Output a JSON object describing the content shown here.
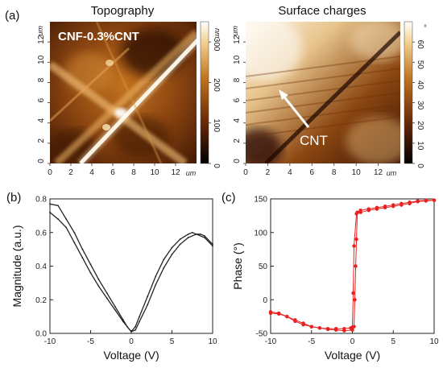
{
  "panel_labels": {
    "a": "(a)",
    "b": "(b)",
    "c": "(c)"
  },
  "panel_a": {
    "left_title": "Topography",
    "right_title": "Surface charges",
    "sample_label": "CNF-0.3%CNT",
    "cnt_annotation": "CNT",
    "xticks": [
      "0",
      "2",
      "4",
      "6",
      "8",
      "10",
      "12"
    ],
    "yticks": [
      "0",
      "2",
      "4",
      "6",
      "8",
      "10",
      "12"
    ],
    "axis_unit": "um",
    "colorbar_left": {
      "unit": "nm",
      "ticks": [
        "0",
        "100",
        "200",
        "300"
      ]
    },
    "colorbar_right": {
      "unit": "°",
      "ticks": [
        "0",
        "10",
        "20",
        "30",
        "40",
        "50",
        "60"
      ]
    },
    "colors": {
      "dark": "#2a0c00",
      "mid": "#a34f10",
      "bright": "#ffe8bc",
      "light": "#fffaf0"
    }
  },
  "chart_data": [
    {
      "type": "line",
      "xlabel": "Voltage (V)",
      "ylabel": "Magnitude (a.u.)",
      "xlim": [
        -10,
        10
      ],
      "ylim": [
        0,
        0.8
      ],
      "xticks": [
        "-10",
        "-5",
        "0",
        "5",
        "10"
      ],
      "yticks": [
        "0.0",
        "0.2",
        "0.4",
        "0.6",
        "0.8"
      ],
      "color": "#222222",
      "series": [
        {
          "x": [
            -10,
            -9,
            -8,
            -7,
            -6,
            -5,
            -4,
            -3,
            -2,
            -1,
            -0.5,
            0,
            0.5,
            1,
            2,
            3,
            4,
            5,
            6,
            7,
            7.5,
            8,
            9,
            10
          ],
          "values": [
            0.77,
            0.76,
            0.68,
            0.6,
            0.5,
            0.41,
            0.32,
            0.24,
            0.16,
            0.08,
            0.04,
            0.01,
            0.04,
            0.1,
            0.22,
            0.34,
            0.44,
            0.51,
            0.56,
            0.59,
            0.6,
            0.59,
            0.57,
            0.52
          ]
        },
        {
          "x": [
            -10,
            -9,
            -8,
            -7,
            -6,
            -5,
            -4,
            -3,
            -2,
            -1,
            0,
            0.5,
            1,
            2,
            3,
            4,
            5,
            6,
            7,
            8,
            8.5,
            9,
            10
          ],
          "values": [
            0.72,
            0.68,
            0.63,
            0.54,
            0.45,
            0.36,
            0.28,
            0.21,
            0.14,
            0.07,
            0.01,
            0.02,
            0.07,
            0.17,
            0.29,
            0.39,
            0.47,
            0.53,
            0.57,
            0.59,
            0.59,
            0.58,
            0.53
          ]
        }
      ]
    },
    {
      "type": "scatter",
      "xlabel": "Voltage (V)",
      "ylabel": "Phase (°)",
      "xlim": [
        -10,
        10
      ],
      "ylim": [
        -50,
        150
      ],
      "xticks": [
        "-10",
        "-5",
        "0",
        "5",
        "10"
      ],
      "yticks": [
        "-50",
        "0",
        "50",
        "100",
        "150"
      ],
      "color": "#e82020",
      "series": [
        {
          "x": [
            -10,
            -9,
            -8,
            -7,
            -6,
            -5,
            -4,
            -3,
            -2,
            -1,
            -0.2,
            0,
            0.1,
            0.2,
            0.5,
            1,
            2,
            3,
            4,
            5,
            6,
            7,
            8,
            9,
            10
          ],
          "values": [
            -18,
            -20,
            -25,
            -32,
            -37,
            -40,
            -42,
            -43,
            -43,
            -43,
            -42,
            -41,
            10,
            80,
            128,
            130,
            133,
            135,
            137,
            139,
            141,
            143,
            146,
            147,
            148
          ]
        },
        {
          "x": [
            10,
            9,
            8,
            7,
            6,
            5,
            4,
            3,
            2,
            1,
            0.6,
            0.5,
            0.4,
            0.3,
            0.2,
            0,
            -1,
            -2,
            -3,
            -4,
            -5,
            -6,
            -7,
            -8,
            -9,
            -10
          ],
          "values": [
            148,
            148,
            147,
            145,
            143,
            141,
            139,
            137,
            135,
            133,
            130,
            90,
            50,
            0,
            -40,
            -45,
            -46,
            -45,
            -44,
            -42,
            -40,
            -35,
            -30,
            -25,
            -21,
            -20
          ]
        }
      ]
    }
  ]
}
